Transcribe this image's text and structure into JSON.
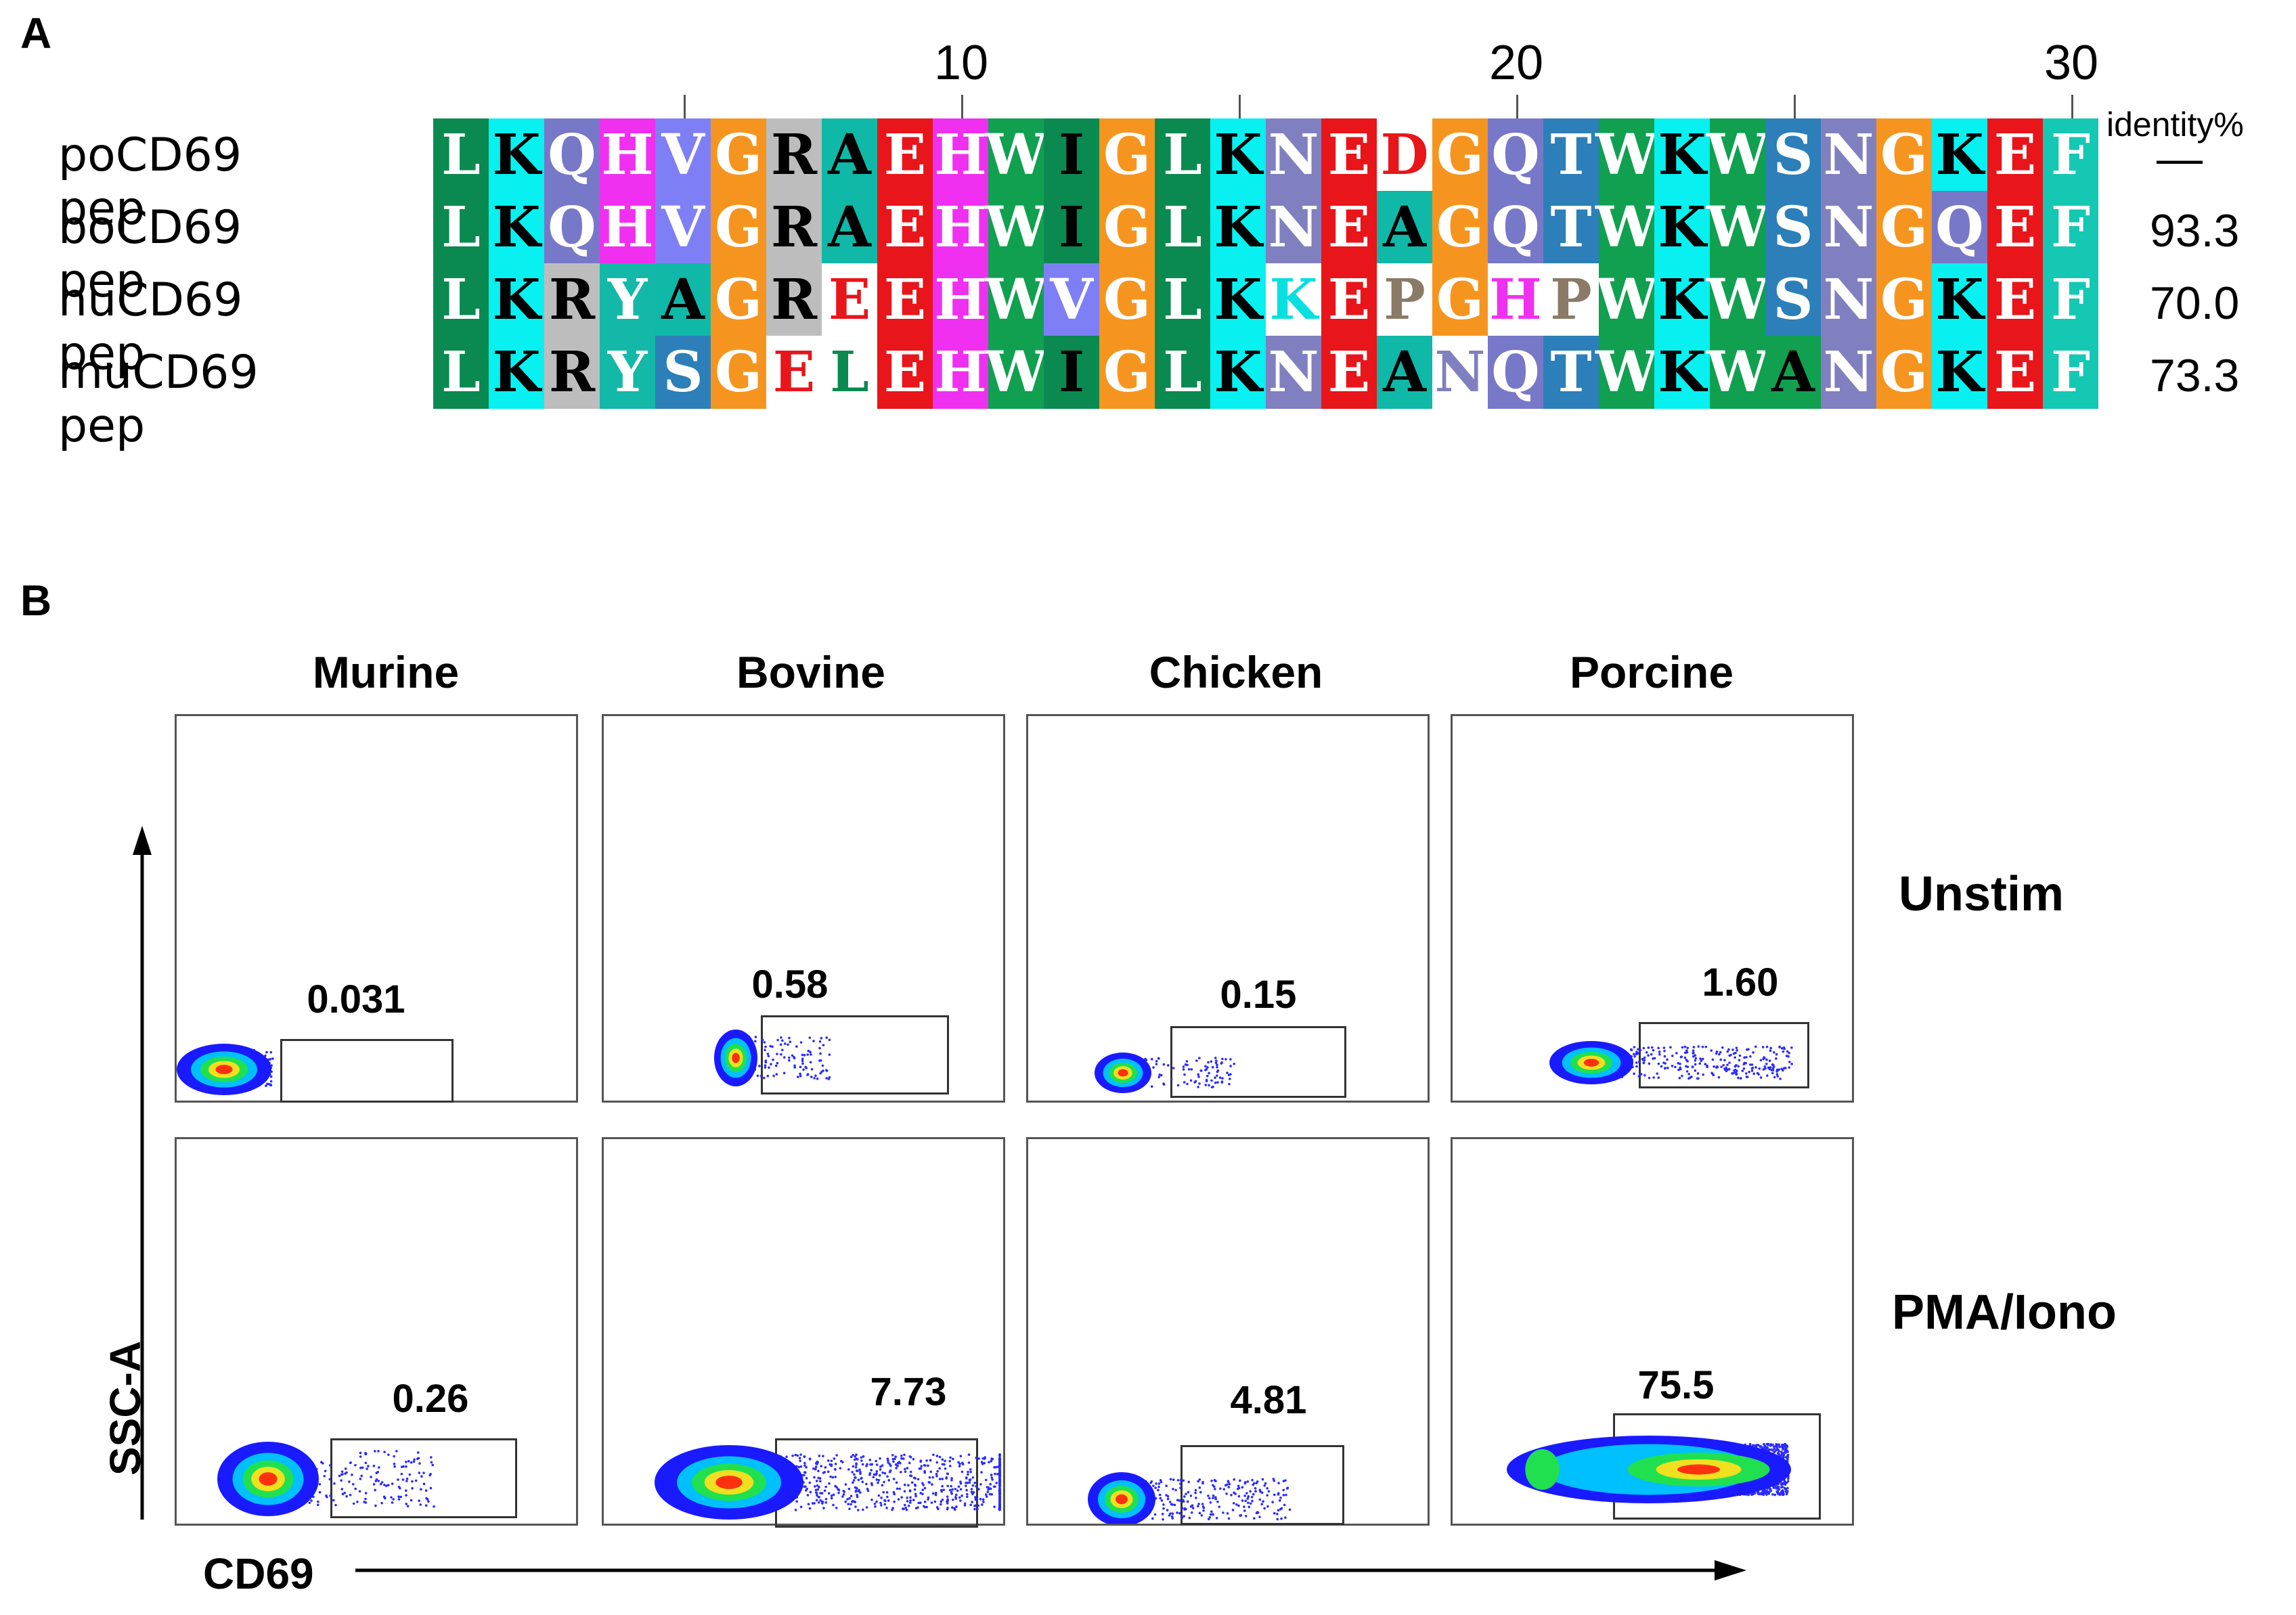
{
  "panel_a": {
    "label": "A",
    "ruler": [
      "10",
      "20",
      "30"
    ],
    "identity_header": "identity%",
    "sequences": [
      {
        "name": "poCD69 pep",
        "identity": "—",
        "residues": [
          "L",
          "K",
          "Q",
          "H",
          "V",
          "G",
          "R",
          "A",
          "E",
          "H",
          "W",
          "I",
          "G",
          "L",
          "K",
          "N",
          "E",
          "D",
          "G",
          "Q",
          "T",
          "W",
          "K",
          "W",
          "S",
          "N",
          "G",
          "K",
          "E",
          "F"
        ]
      },
      {
        "name": "boCD69 pep",
        "identity": "93.3",
        "residues": [
          "L",
          "K",
          "Q",
          "H",
          "V",
          "G",
          "R",
          "A",
          "E",
          "H",
          "W",
          "I",
          "G",
          "L",
          "K",
          "N",
          "E",
          "A",
          "G",
          "Q",
          "T",
          "W",
          "K",
          "W",
          "S",
          "N",
          "G",
          "Q",
          "E",
          "F"
        ]
      },
      {
        "name": "huCD69 pep",
        "identity": "70.0",
        "residues": [
          "L",
          "K",
          "R",
          "Y",
          "A",
          "G",
          "R",
          "E",
          "E",
          "H",
          "W",
          "V",
          "G",
          "L",
          "K",
          "K",
          "E",
          "P",
          "G",
          "H",
          "P",
          "W",
          "K",
          "W",
          "S",
          "N",
          "G",
          "K",
          "E",
          "F"
        ]
      },
      {
        "name": "muCD69 pep",
        "identity": "73.3",
        "residues": [
          "L",
          "K",
          "R",
          "Y",
          "S",
          "G",
          "E",
          "L",
          "E",
          "H",
          "W",
          "I",
          "G",
          "L",
          "K",
          "N",
          "E",
          "A",
          "N",
          "Q",
          "T",
          "W",
          "K",
          "W",
          "A",
          "N",
          "G",
          "K",
          "E",
          "F"
        ]
      }
    ]
  },
  "panel_b": {
    "label": "B",
    "columns": [
      "Murine",
      "Bovine",
      "Chicken",
      "Porcine"
    ],
    "rows": [
      "Unstim",
      "PMA/Iono"
    ],
    "gate_values": [
      [
        "0.031",
        "0.58",
        "0.15",
        "1.60"
      ],
      [
        "0.26",
        "7.73",
        "4.81",
        "75.5"
      ]
    ],
    "y_axis_label": "SSC-A",
    "x_axis_label": "CD69"
  }
}
